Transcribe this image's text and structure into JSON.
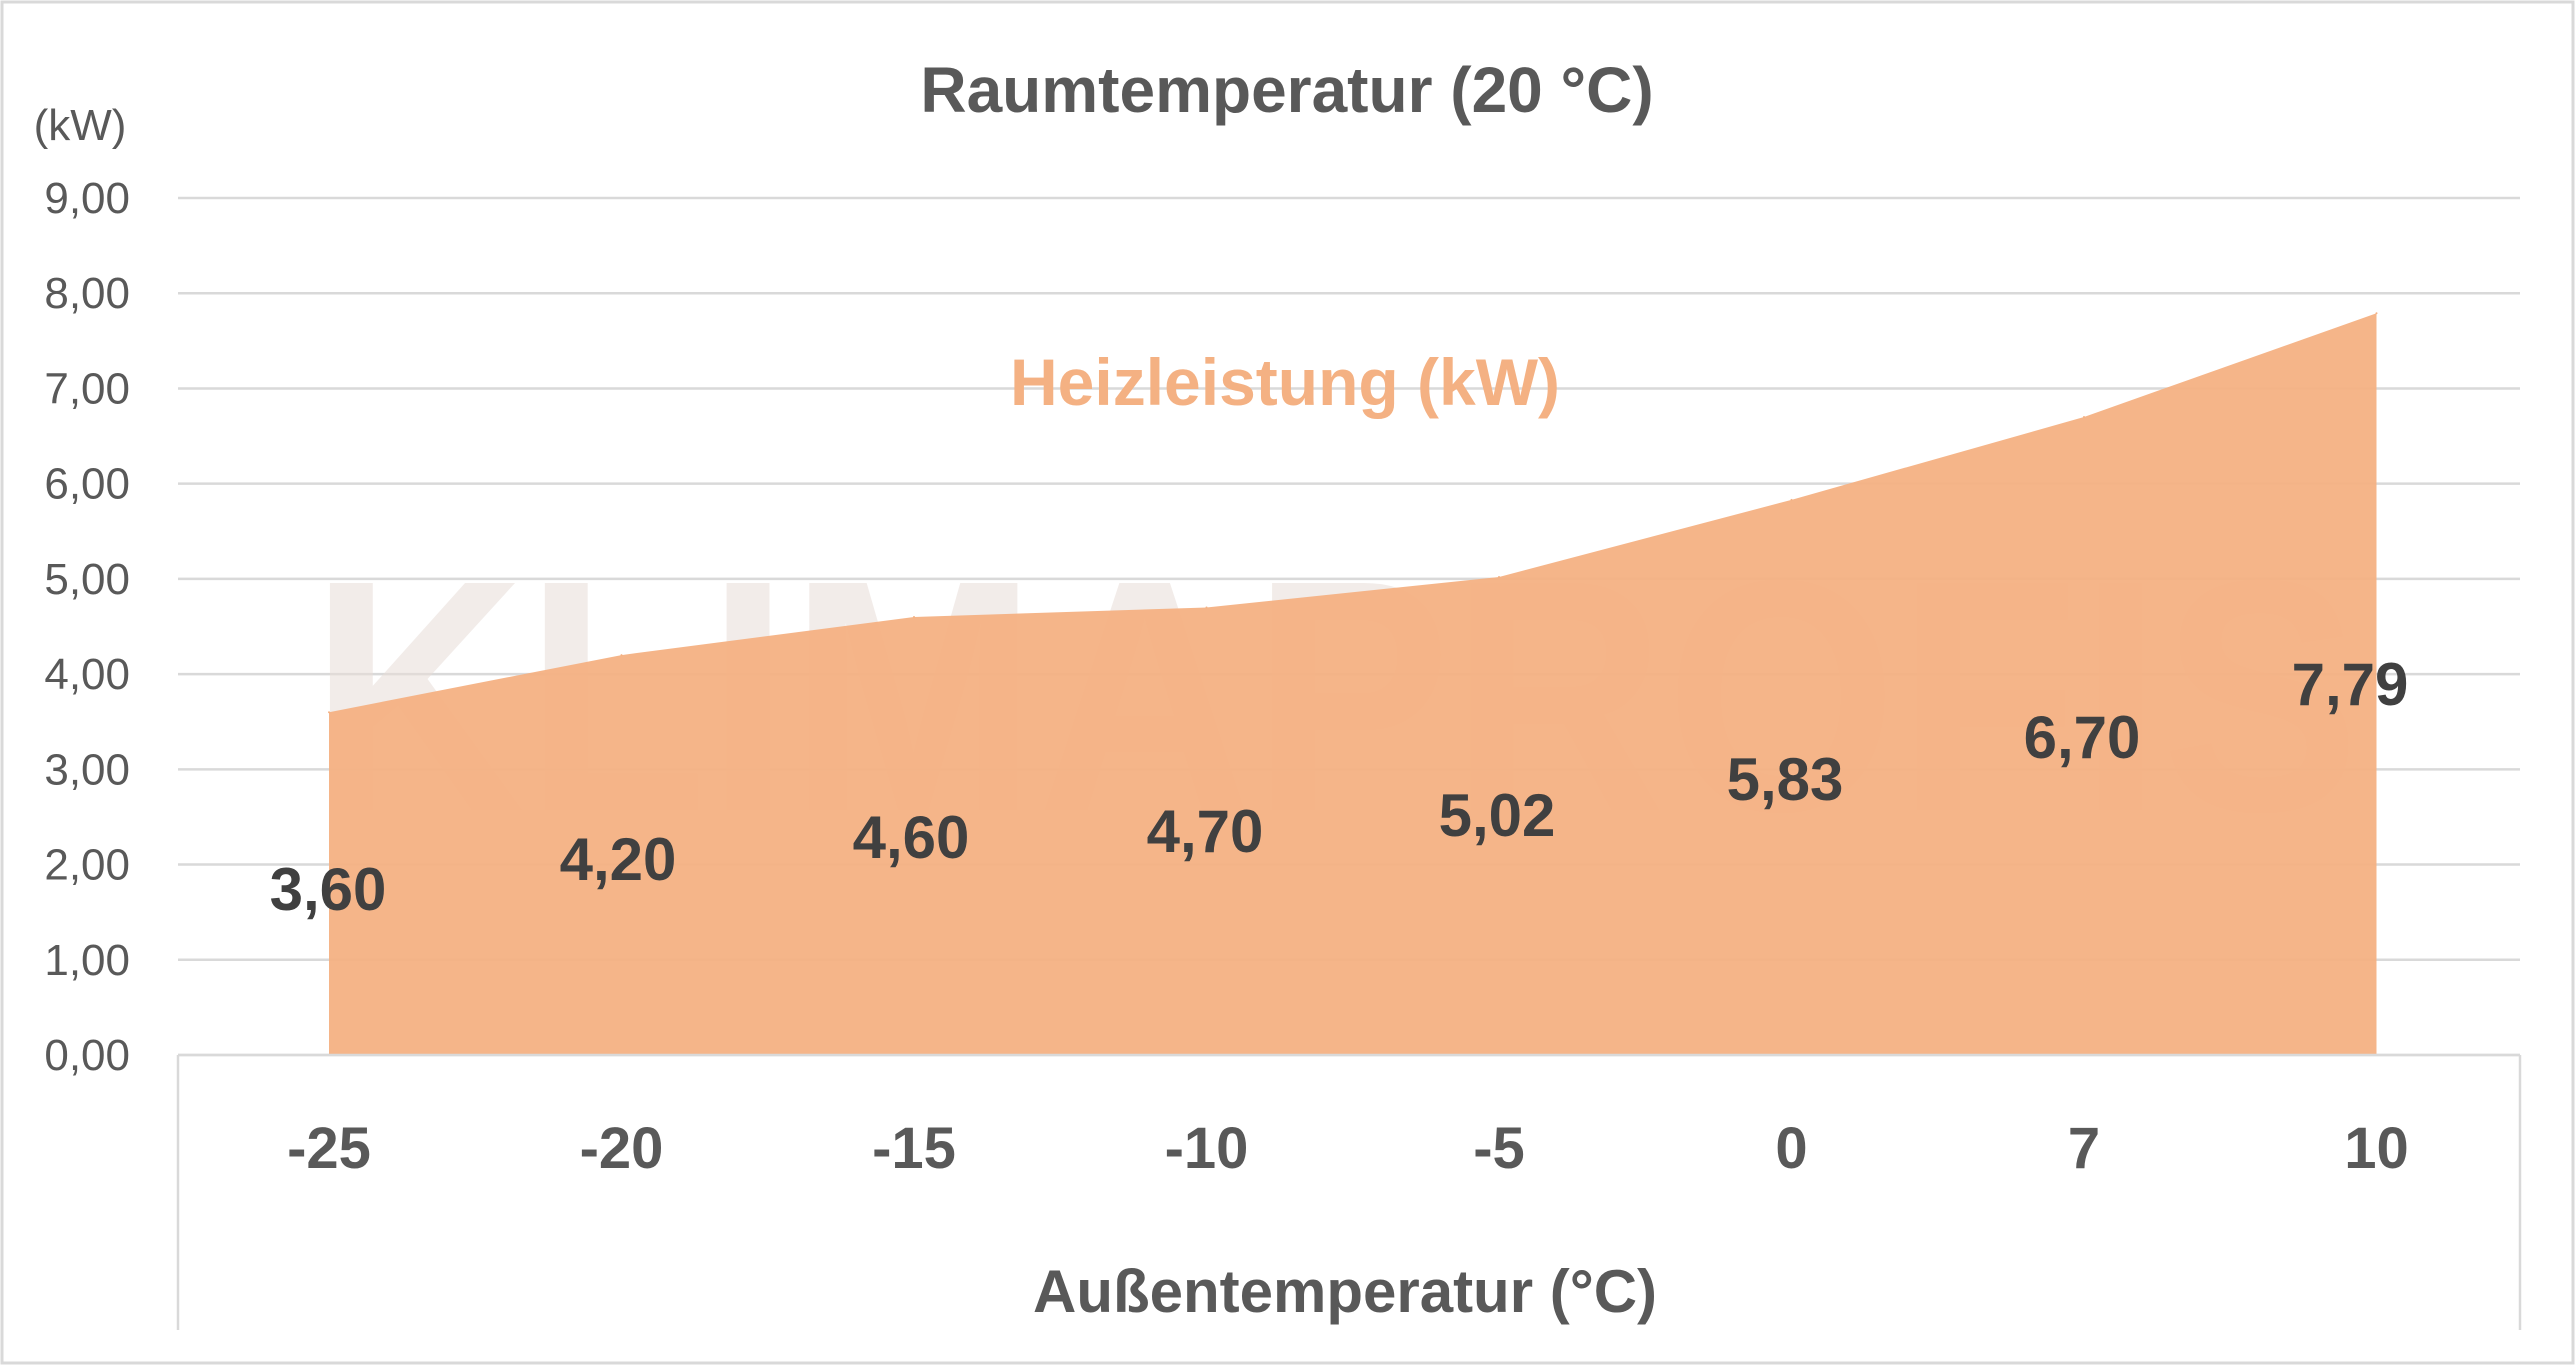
{
  "chart_data": {
    "type": "area",
    "title": "Raumtemperatur (20 °C)",
    "xlabel": "Außentemperatur (°C)",
    "ylabel": "(kW)",
    "categories": [
      "-25",
      "-20",
      "-15",
      "-10",
      "-5",
      "0",
      "7",
      "10"
    ],
    "series": [
      {
        "name": "Heizleistung (kW)",
        "values": [
          3.6,
          4.2,
          4.6,
          4.7,
          5.02,
          5.83,
          6.7,
          7.79
        ],
        "data_labels": [
          "3,60",
          "4,20",
          "4,60",
          "4,70",
          "5,02",
          "5,83",
          "6,70",
          "7,79"
        ]
      }
    ],
    "ylim": [
      0,
      9
    ],
    "yticks": [
      "0,00",
      "1,00",
      "2,00",
      "3,00",
      "4,00",
      "5,00",
      "6,00",
      "7,00",
      "8,00",
      "9,00"
    ],
    "grid": true,
    "legend": "none"
  },
  "watermark": "KLIMAPROFIS",
  "colors": {
    "area": "#f4b183",
    "grid": "#d9d9d9",
    "text": "#595959",
    "label": "#404040",
    "watermark": "#e8ddd7"
  }
}
